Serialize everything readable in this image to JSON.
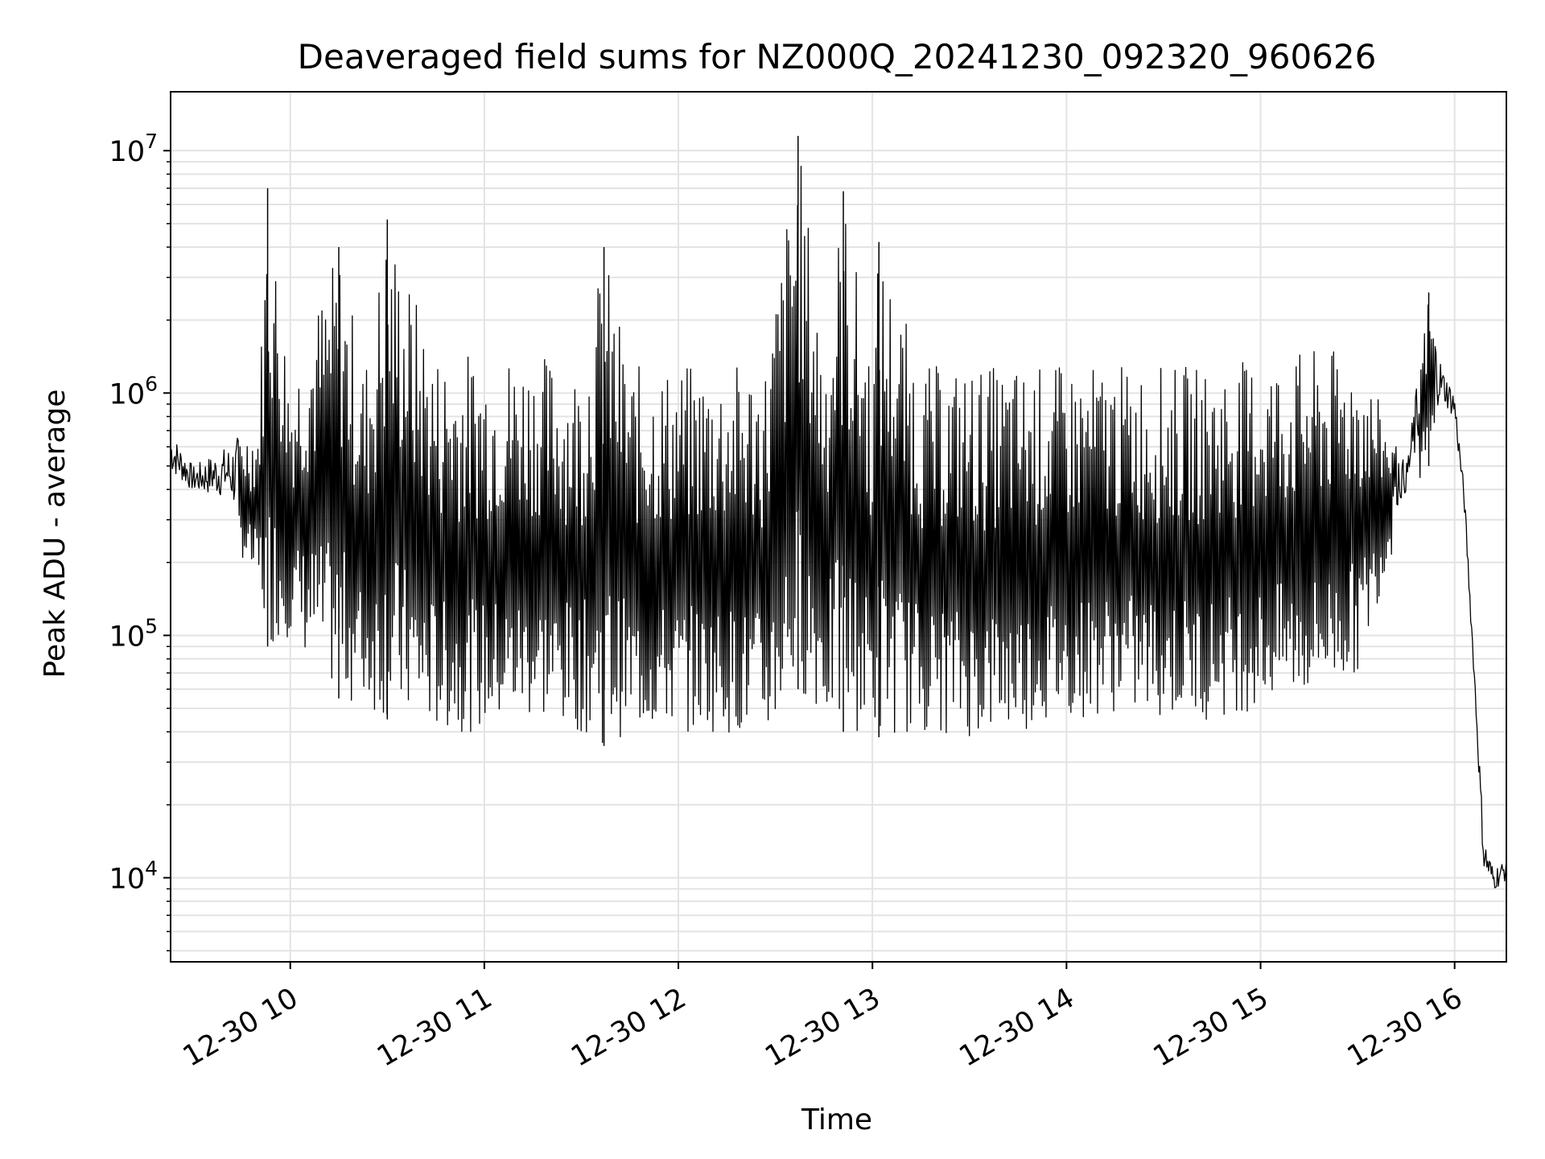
{
  "chart_data": {
    "type": "line",
    "title": "Deaveraged field sums for NZ000Q_20241230_092320_960626",
    "xlabel": "Time",
    "ylabel": "Peak ADU - average",
    "yscale": "log",
    "xlim": [
      "12-30 09:23",
      "12-30 16:16"
    ],
    "ylim": [
      4500,
      17500000
    ],
    "xticks": [
      "12-30 10",
      "12-30 11",
      "12-30 12",
      "12-30 13",
      "12-30 14",
      "12-30 15",
      "12-30 16"
    ],
    "yticks": [
      {
        "base": "10",
        "exp": "4",
        "value": 10000
      },
      {
        "base": "10",
        "exp": "5",
        "value": 100000
      },
      {
        "base": "10",
        "exp": "6",
        "value": 1000000
      },
      {
        "base": "10",
        "exp": "7",
        "value": 10000000
      }
    ],
    "grid": true,
    "legend": "none",
    "colors": {
      "line": "#000000",
      "grid": "#e3e3e3",
      "frame": "#000000"
    },
    "series": [
      {
        "x": [
          "12-30 09:23",
          "12-30 09:30",
          "12-30 09:40",
          "12-30 09:50",
          "12-30 09:53",
          "12-30 10:00",
          "12-30 10:15",
          "12-30 10:23",
          "12-30 10:30",
          "12-30 10:45",
          "12-30 11:00",
          "12-30 11:15",
          "12-30 11:30",
          "12-30 11:37",
          "12-30 11:45",
          "12-30 12:00",
          "12-30 12:15",
          "12-30 12:27",
          "12-30 12:37",
          "12-30 12:45",
          "12-30 12:51",
          "12-30 13:00",
          "12-30 13:02",
          "12-30 13:15",
          "12-30 13:30",
          "12-30 13:45",
          "12-30 14:00",
          "12-30 14:15",
          "12-30 14:30",
          "12-30 14:45",
          "12-30 15:00",
          "12-30 15:15",
          "12-30 15:30",
          "12-30 15:45",
          "12-30 15:52",
          "12-30 15:56",
          "12-30 16:00",
          "12-30 16:03",
          "12-30 16:06",
          "12-30 16:09",
          "12-30 16:12",
          "12-30 16:16"
        ],
        "y": [
          700000,
          500000,
          600000,
          800000,
          7000000,
          1200000,
          4000000,
          1300000,
          5200000,
          1500000,
          1500000,
          1500000,
          1300000,
          4000000,
          1300000,
          1300000,
          1300000,
          1400000,
          11500000,
          1600000,
          6800000,
          1400000,
          4200000,
          1300000,
          1300000,
          1300000,
          1300000,
          1300000,
          1300000,
          1300000,
          1400000,
          1500000,
          1500000,
          500000,
          2600000,
          1300000,
          1000000,
          400000,
          80000,
          15000,
          11000,
          12000
        ],
        "y_min": [
          400000,
          350000,
          300000,
          150000,
          90000,
          100000,
          55000,
          50000,
          45000,
          40000,
          40000,
          45000,
          40000,
          35000,
          40000,
          40000,
          40000,
          35000,
          60000,
          45000,
          40000,
          40000,
          38000,
          40000,
          38000,
          40000,
          45000,
          48000,
          45000,
          45000,
          50000,
          55000,
          70000,
          350000,
          500000,
          800000,
          700000,
          300000,
          60000,
          9000,
          8000,
          9000
        ]
      }
    ]
  }
}
